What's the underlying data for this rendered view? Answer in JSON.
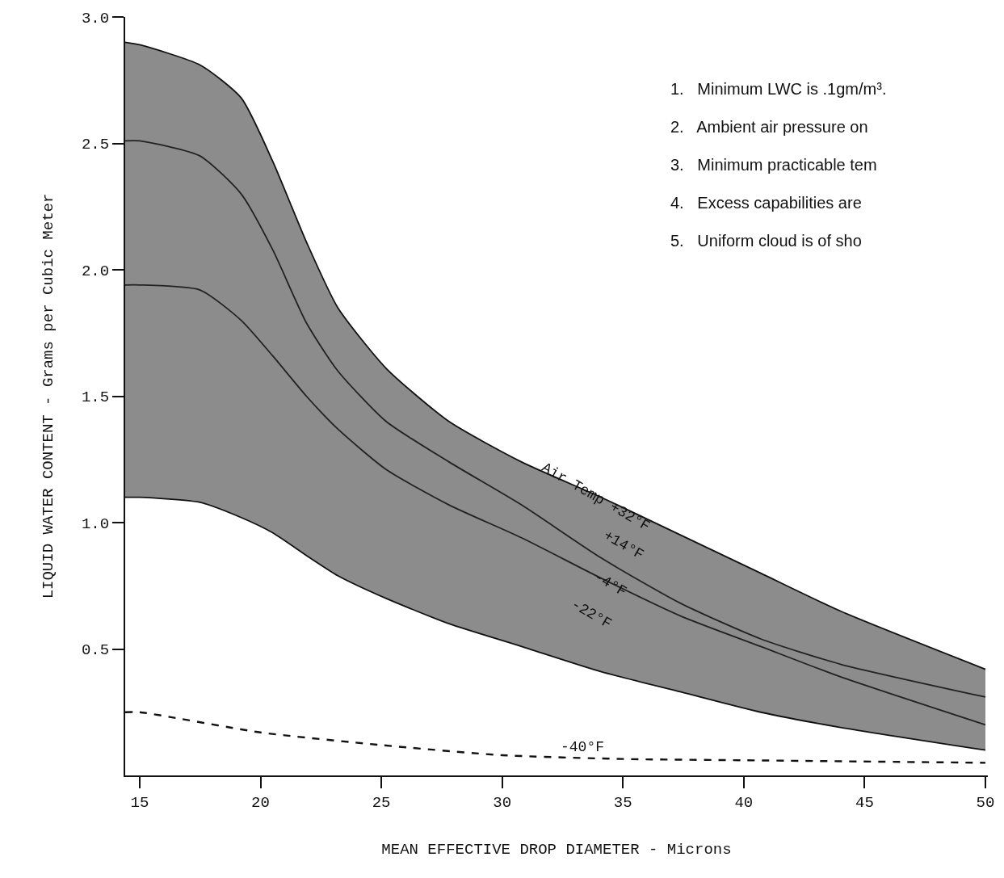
{
  "chart_data": {
    "type": "line",
    "xlabel": "MEAN EFFECTIVE DROP DIAMETER - Microns",
    "ylabel": "LIQUID WATER CONTENT - Grams per Cubic Meter",
    "xlim": [
      14.4,
      50.1
    ],
    "ylim": [
      0,
      3.0
    ],
    "xticks": [
      15,
      20,
      25,
      30,
      35,
      40,
      45,
      50
    ],
    "yticks": [
      {
        "value": 0.5,
        "label": "0.5"
      },
      {
        "value": 1,
        "label": "1.0"
      },
      {
        "value": 1.5,
        "label": "1.5"
      },
      {
        "value": 2,
        "label": "2.0"
      },
      {
        "value": 2.5,
        "label": "2.5"
      },
      {
        "value": 3,
        "label": "3.0"
      }
    ],
    "legend": false,
    "marker": "none",
    "series": [
      {
        "color": "#111111",
        "line_style": "solid",
        "x": [
          14.4,
          15,
          17.5,
          19.2,
          20.5,
          21.9,
          23.2,
          25.2,
          27.8,
          30.8,
          34.1,
          37.4,
          40.7,
          44,
          50
        ],
        "values": [
          1.1,
          1.1,
          1.08,
          1.02,
          0.96,
          0.87,
          0.79,
          0.7,
          0.6,
          0.51,
          0.41,
          0.33,
          0.25,
          0.19,
          0.1
        ]
      },
      {
        "type": "area",
        "color": "#8c8c8c",
        "line_style": "solid",
        "x": [
          14.4,
          15,
          17.5,
          19.2,
          20.5,
          21.9,
          23.2,
          25.2,
          27.8,
          30.8,
          34.1,
          37.4,
          40.7,
          44,
          50
        ],
        "values": [
          2.9,
          2.89,
          2.81,
          2.68,
          2.43,
          2.11,
          1.85,
          1.61,
          1.4,
          1.24,
          1.1,
          0.95,
          0.8,
          0.65,
          0.42
        ]
      },
      {
        "color": "#222222",
        "line_style": "solid",
        "x": [
          14.4,
          15,
          17.5,
          19.2,
          20.5,
          21.9,
          23.2,
          25.2,
          27.8,
          30.8,
          34.1,
          37.4,
          40.7,
          44,
          50
        ],
        "values": [
          2.51,
          2.51,
          2.45,
          2.3,
          2.08,
          1.79,
          1.6,
          1.4,
          1.24,
          1.07,
          0.86,
          0.68,
          0.54,
          0.44,
          0.31
        ]
      },
      {
        "color": "#222222",
        "line_style": "solid",
        "x": [
          14.4,
          15,
          17.5,
          19.2,
          20.5,
          21.9,
          23.2,
          25.2,
          27.8,
          30.8,
          34.1,
          37.4,
          40.7,
          44,
          50
        ],
        "values": [
          1.94,
          1.94,
          1.92,
          1.8,
          1.66,
          1.5,
          1.37,
          1.21,
          1.07,
          0.94,
          0.78,
          0.63,
          0.51,
          0.39,
          0.2
        ]
      },
      {
        "color": "#111111",
        "line_style": "dashed",
        "x": [
          14.4,
          15,
          20,
          25,
          30,
          35,
          40,
          50
        ],
        "values": [
          0.25,
          0.25,
          0.17,
          0.12,
          0.08,
          0.065,
          0.06,
          0.05
        ]
      }
    ],
    "annotations": [
      "Air Temp +32°F",
      "+14°F",
      "-4°F",
      "-22°F",
      "-40°F",
      "1.   Minimum LWC is .1gm/m³.",
      "2.   Ambient air pressure on",
      "3.   Minimum practicable tem",
      "4.   Excess capabilities are",
      "5.   Uniform cloud is of sho"
    ]
  }
}
